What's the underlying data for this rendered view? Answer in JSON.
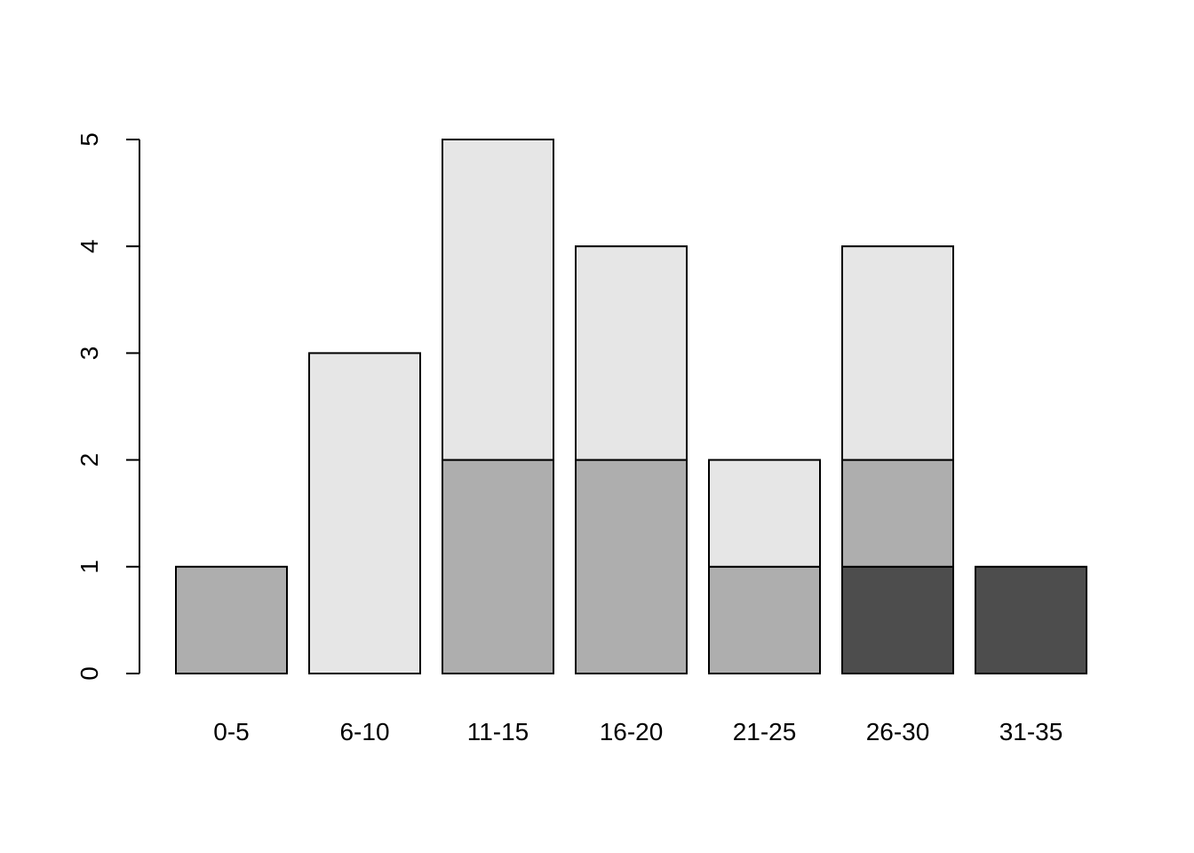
{
  "chart_data": {
    "type": "stacked-bar",
    "categories": [
      "0-5",
      "6-10",
      "11-15",
      "16-20",
      "21-25",
      "26-30",
      "31-35"
    ],
    "series": [
      {
        "color": "#4d4d4d",
        "values": [
          0,
          0,
          0,
          0,
          0,
          1,
          1
        ]
      },
      {
        "color": "#aeaeae",
        "values": [
          1,
          0,
          2,
          2,
          1,
          1,
          0
        ]
      },
      {
        "color": "#e6e6e6",
        "values": [
          0,
          3,
          3,
          2,
          1,
          2,
          0
        ]
      }
    ],
    "ylim": [
      0,
      5
    ],
    "yticks": [
      0,
      1,
      2,
      3,
      4,
      5
    ]
  }
}
